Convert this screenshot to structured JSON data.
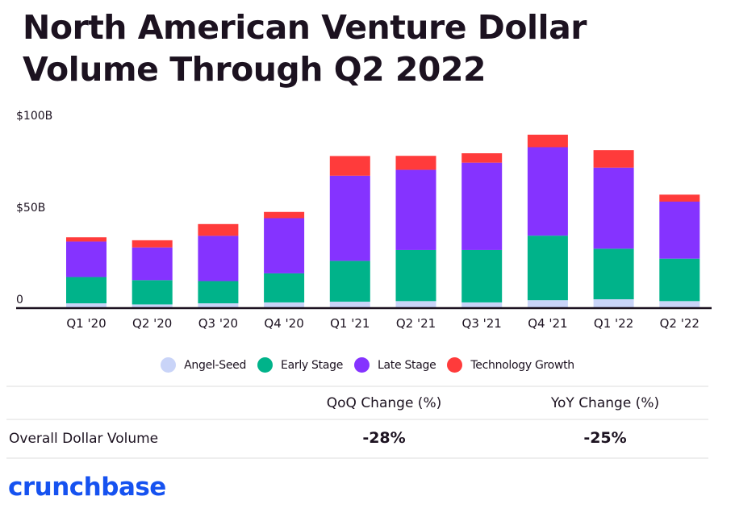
{
  "chart_data": {
    "type": "bar",
    "stacked": true,
    "title": "North American Venture Dollar Volume Through Q2 2022",
    "xlabel": "",
    "ylabel": "",
    "ylim": [
      0,
      100
    ],
    "yticks": [
      {
        "value": 0,
        "label": "0"
      },
      {
        "value": 50,
        "label": "$50B"
      },
      {
        "value": 100,
        "label": "$100B"
      }
    ],
    "grid": false,
    "legend_position": "bottom",
    "categories": [
      "Q1 '20",
      "Q2 '20",
      "Q3 '20",
      "Q4 '20",
      "Q1 '21",
      "Q2 '21",
      "Q3 '21",
      "Q4 '21",
      "Q1 '22",
      "Q2 '22"
    ],
    "series": [
      {
        "name": "Angel-Seed",
        "color": "#c9d4f8",
        "values": [
          2.6,
          2.0,
          2.6,
          3.1,
          3.5,
          3.8,
          3.1,
          4.3,
          4.8,
          3.8
        ]
      },
      {
        "name": "Early Stage",
        "color": "#00b38a",
        "values": [
          14.3,
          13.2,
          12.1,
          15.8,
          22.2,
          27.8,
          28.5,
          35.1,
          27.5,
          23.1
        ]
      },
      {
        "name": "Late Stage",
        "color": "#8533ff",
        "values": [
          19.3,
          17.8,
          24.6,
          30.0,
          46.3,
          43.6,
          47.5,
          48.1,
          44.1,
          31.0
        ]
      },
      {
        "name": "Technology Growth",
        "color": "#ff3b3b",
        "values": [
          2.3,
          3.9,
          6.4,
          3.4,
          10.7,
          7.6,
          5.1,
          6.8,
          9.5,
          3.8
        ]
      }
    ]
  },
  "table": {
    "headers": [
      "QoQ Change (%)",
      "YoY Change (%)"
    ],
    "row_label": "Overall Dollar Volume",
    "values": [
      "-28%",
      "-25%"
    ]
  },
  "logo": {
    "text": "crunchbase",
    "color": "#1652f0"
  }
}
